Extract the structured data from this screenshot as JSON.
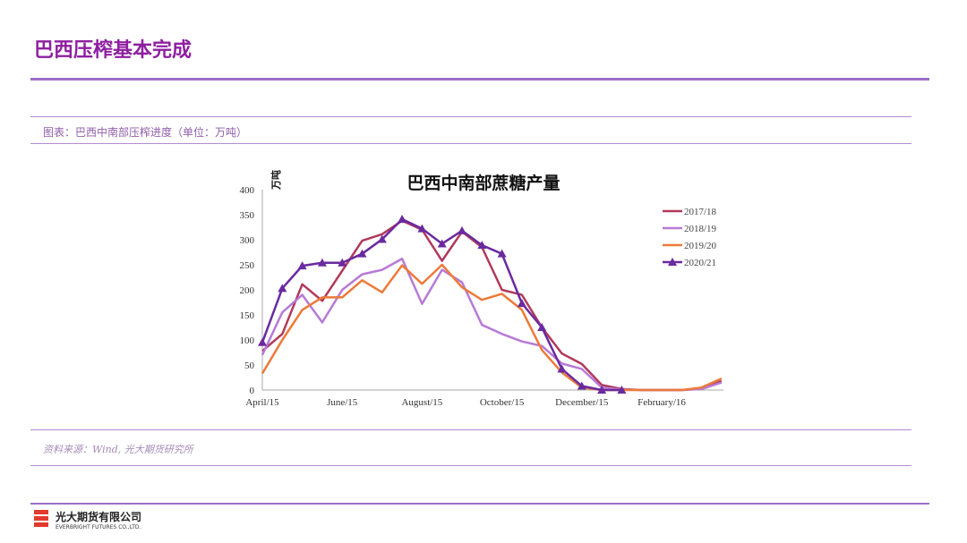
{
  "header": {
    "title": "巴西压榨基本完成"
  },
  "figure": {
    "caption": "图表：巴西中南部压榨进度（单位：万吨）",
    "source": "资料来源：Wind, 光大期货研究所"
  },
  "footer": {
    "company_cn": "光大期货有限公司",
    "company_en": "EVERBRIGHT FUTURES CO.,LTD."
  },
  "chart_data": {
    "type": "line",
    "title": "巴西中南部蔗糖产量",
    "ylabel": "万吨",
    "ylim": [
      0,
      400
    ],
    "yticks": [
      0,
      50,
      100,
      150,
      200,
      250,
      300,
      350,
      400
    ],
    "xtick_labels": [
      "April/15",
      "June/15",
      "August/15",
      "October/15",
      "December/15",
      "February/16"
    ],
    "legend_position": "right",
    "series": [
      {
        "name": "2017/18",
        "color": "#b03a5b",
        "marker": "none",
        "values": [
          78,
          112,
          211,
          178,
          238,
          298,
          311,
          338,
          320,
          258,
          316,
          285,
          200,
          190,
          125,
          73,
          52,
          10,
          2,
          0,
          0,
          0,
          3,
          18
        ]
      },
      {
        "name": "2018/19",
        "color": "#b77ad6",
        "marker": "none",
        "values": [
          70,
          155,
          190,
          135,
          200,
          231,
          240,
          262,
          172,
          240,
          215,
          130,
          112,
          97,
          88,
          53,
          42,
          5,
          1,
          0,
          0,
          0,
          2,
          15
        ]
      },
      {
        "name": "2019/20",
        "color": "#ec7a3a",
        "marker": "none",
        "values": [
          33,
          100,
          160,
          185,
          185,
          219,
          195,
          249,
          212,
          250,
          205,
          180,
          192,
          160,
          80,
          35,
          5,
          0,
          0,
          0,
          0,
          0,
          5,
          23
        ]
      },
      {
        "name": "2020/21",
        "color": "#6a2aa0",
        "marker": "triangle",
        "values": [
          95,
          203,
          248,
          254,
          254,
          272,
          301,
          341,
          322,
          292,
          318,
          289,
          272,
          173,
          125,
          42,
          8,
          0,
          0
        ]
      }
    ]
  }
}
